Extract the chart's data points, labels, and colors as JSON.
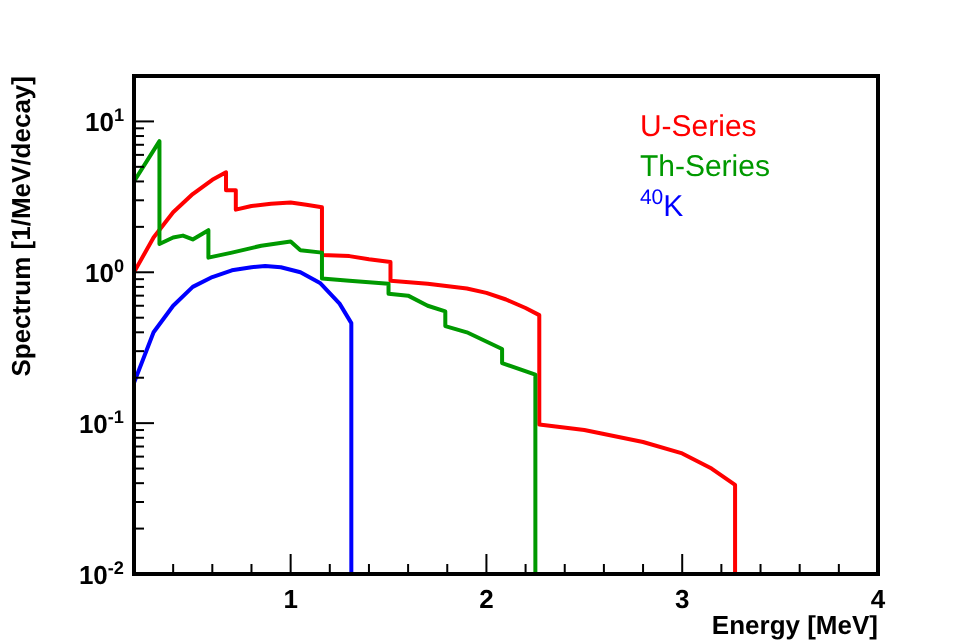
{
  "chart_data": {
    "type": "line",
    "xlabel": "Energy [MeV]",
    "ylabel": "Spectrum [1/MeV/decay]",
    "log": "y",
    "grid": false,
    "legend": "top right",
    "marker": "none",
    "line_style": "solid",
    "xlim": [
      0.2,
      4
    ],
    "xticks": [
      {
        "value": 0.2,
        "label": null
      },
      {
        "value": 0.4,
        "label": null
      },
      {
        "value": 0.6,
        "label": null
      },
      {
        "value": 0.8,
        "label": null
      },
      1,
      {
        "value": 1.2,
        "label": null
      },
      {
        "value": 1.4,
        "label": null
      },
      {
        "value": 1.6,
        "label": null
      },
      {
        "value": 1.8,
        "label": null
      },
      2,
      {
        "value": 2.2,
        "label": null
      },
      {
        "value": 2.4,
        "label": null
      },
      {
        "value": 2.6,
        "label": null
      },
      {
        "value": 2.8,
        "label": null
      },
      3,
      {
        "value": 3.2,
        "label": null
      },
      {
        "value": 3.4,
        "label": null
      },
      {
        "value": 3.6,
        "label": null
      },
      {
        "value": 3.8,
        "label": null
      },
      4
    ],
    "ylim": [
      0.01,
      20
    ],
    "yticks": [
      {
        "value": 0.01,
        "label": "10$^{-2}$"
      },
      {
        "value": 0.02,
        "label": null
      },
      {
        "value": 0.03,
        "label": null
      },
      {
        "value": 0.04,
        "label": null
      },
      {
        "value": 0.05,
        "label": null
      },
      {
        "value": 0.06,
        "label": null
      },
      {
        "value": 0.07,
        "label": null
      },
      {
        "value": 0.08,
        "label": null
      },
      {
        "value": 0.09,
        "label": null
      },
      {
        "value": 0.1,
        "label": "10$^{-1}$"
      },
      {
        "value": 0.2,
        "label": null
      },
      {
        "value": 0.3,
        "label": null
      },
      {
        "value": 0.4,
        "label": null
      },
      {
        "value": 0.5,
        "label": null
      },
      {
        "value": 0.6,
        "label": null
      },
      {
        "value": 0.7,
        "label": null
      },
      {
        "value": 0.8,
        "label": null
      },
      {
        "value": 0.9,
        "label": null
      },
      {
        "value": 1,
        "label": "10$^{0}$"
      },
      {
        "value": 2,
        "label": null
      },
      {
        "value": 3,
        "label": null
      },
      {
        "value": 4,
        "label": null
      },
      {
        "value": 5,
        "label": null
      },
      {
        "value": 6,
        "label": null
      },
      {
        "value": 7,
        "label": null
      },
      {
        "value": 8,
        "label": null
      },
      {
        "value": 9,
        "label": null
      },
      {
        "value": 10,
        "label": "10$^{1}$"
      },
      {
        "value": 20,
        "label": null
      }
    ],
    "series": [
      {
        "name": "U-Series",
        "color": "#ff0000",
        "x": [
          0.2,
          0.3,
          0.4,
          0.5,
          0.6,
          0.67,
          0.67,
          0.72,
          0.72,
          0.8,
          0.9,
          1.0,
          1.08,
          1.16,
          1.16,
          1.3,
          1.4,
          1.51,
          1.51,
          1.7,
          1.9,
          2.0,
          2.1,
          2.2,
          2.27,
          2.27,
          2.5,
          2.8,
          3.0,
          3.15,
          3.27,
          3.27
        ],
        "values": [
          1.0,
          1.7,
          2.5,
          3.3,
          4.1,
          4.6,
          3.5,
          3.5,
          2.6,
          2.75,
          2.85,
          2.9,
          2.8,
          2.7,
          1.3,
          1.28,
          1.22,
          1.17,
          0.88,
          0.84,
          0.78,
          0.73,
          0.66,
          0.58,
          0.52,
          0.098,
          0.09,
          0.075,
          0.063,
          0.05,
          0.039,
          0.01
        ]
      },
      {
        "name": "Th-Series",
        "color": "#009900",
        "x": [
          0.2,
          0.33,
          0.33,
          0.4,
          0.45,
          0.5,
          0.58,
          0.58,
          0.7,
          0.85,
          1.0,
          1.05,
          1.16,
          1.16,
          1.3,
          1.5,
          1.5,
          1.6,
          1.7,
          1.79,
          1.79,
          1.9,
          2.08,
          2.08,
          2.25,
          2.25
        ],
        "values": [
          4.0,
          7.4,
          1.54,
          1.7,
          1.75,
          1.65,
          1.9,
          1.25,
          1.35,
          1.5,
          1.6,
          1.4,
          1.35,
          0.91,
          0.88,
          0.84,
          0.72,
          0.7,
          0.6,
          0.55,
          0.44,
          0.4,
          0.31,
          0.25,
          0.21,
          0.01
        ]
      },
      {
        "name": "$^{40}$K",
        "color": "#0000ff",
        "x": [
          0.2,
          0.3,
          0.4,
          0.5,
          0.6,
          0.7,
          0.8,
          0.87,
          0.95,
          1.05,
          1.15,
          1.25,
          1.31,
          1.31
        ],
        "values": [
          0.185,
          0.4,
          0.6,
          0.8,
          0.93,
          1.03,
          1.08,
          1.1,
          1.08,
          1.0,
          0.85,
          0.62,
          0.46,
          0.01
        ]
      }
    ]
  }
}
